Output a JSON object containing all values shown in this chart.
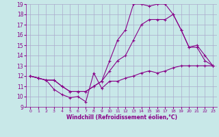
{
  "xlabel": "Windchill (Refroidissement éolien,°C)",
  "background_color": "#c8e8e8",
  "line_color": "#880088",
  "grid_color": "#aaaacc",
  "xlim": [
    -0.5,
    23.5
  ],
  "ylim": [
    9,
    19
  ],
  "yticks": [
    9,
    10,
    11,
    12,
    13,
    14,
    15,
    16,
    17,
    18,
    19
  ],
  "xticks": [
    0,
    1,
    2,
    3,
    4,
    5,
    6,
    7,
    8,
    9,
    10,
    11,
    12,
    13,
    14,
    15,
    16,
    17,
    18,
    19,
    20,
    21,
    22,
    23
  ],
  "line1_x": [
    0,
    1,
    2,
    3,
    4,
    5,
    6,
    7,
    8,
    9,
    10,
    11,
    12,
    13,
    14,
    15,
    16,
    17,
    18,
    19,
    20,
    21,
    22,
    23
  ],
  "line1_y": [
    12.0,
    11.8,
    11.6,
    10.7,
    10.2,
    9.9,
    10.0,
    9.5,
    12.3,
    10.8,
    11.5,
    11.5,
    11.8,
    12.0,
    12.3,
    12.5,
    12.3,
    12.5,
    12.8,
    13.0,
    13.0,
    13.0,
    13.0,
    13.0
  ],
  "line2_x": [
    0,
    1,
    2,
    3,
    4,
    5,
    6,
    7,
    8,
    9,
    10,
    11,
    12,
    13,
    14,
    15,
    16,
    17,
    18,
    19,
    20,
    21,
    22,
    23
  ],
  "line2_y": [
    12.0,
    11.8,
    11.6,
    11.6,
    11.0,
    10.5,
    10.5,
    10.5,
    11.0,
    11.5,
    12.5,
    13.5,
    14.0,
    15.5,
    17.0,
    17.5,
    17.5,
    17.5,
    18.0,
    16.5,
    14.8,
    15.0,
    14.0,
    13.0
  ],
  "line3_x": [
    0,
    1,
    2,
    3,
    4,
    5,
    6,
    7,
    8,
    9,
    10,
    11,
    12,
    13,
    14,
    15,
    16,
    17,
    18,
    19,
    20,
    21,
    22,
    23
  ],
  "line3_y": [
    12.0,
    11.8,
    11.6,
    11.6,
    11.0,
    10.5,
    10.5,
    10.5,
    11.0,
    11.5,
    13.5,
    15.5,
    16.5,
    19.0,
    19.0,
    18.8,
    19.0,
    19.0,
    18.0,
    16.5,
    14.8,
    14.8,
    13.5,
    13.0
  ]
}
